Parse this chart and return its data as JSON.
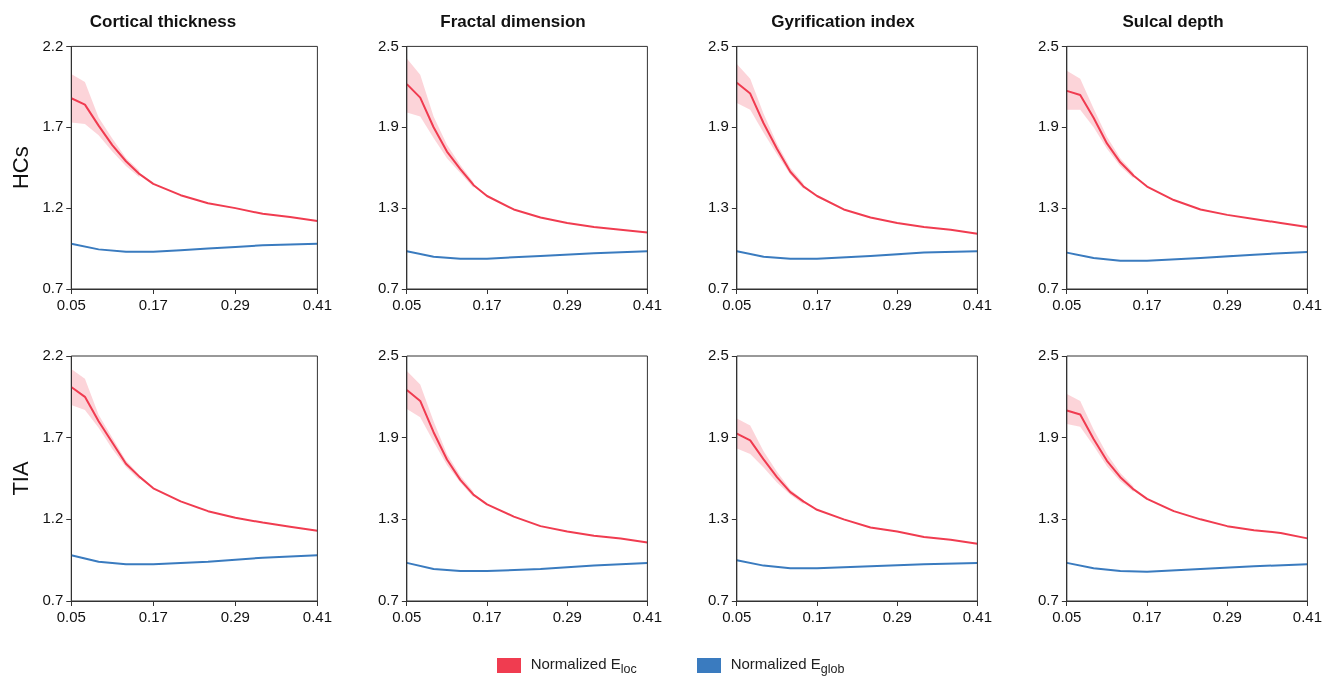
{
  "chart_data": [
    {
      "type": "line",
      "title": "Cortical thickness",
      "ylabel": "HCs",
      "legend": "bottom",
      "xlim": [
        0.05,
        0.41
      ],
      "xticks": [
        0.05,
        0.17,
        0.29,
        0.41
      ],
      "ylim": [
        0.7,
        2.2
      ],
      "yticks": [
        0.7,
        1.2,
        1.7,
        2.2
      ],
      "series": [
        {
          "name": "Normalized E$_{loc}$",
          "color": "#f03c50",
          "x": [
            0.05,
            0.07,
            0.09,
            0.11,
            0.13,
            0.15,
            0.17,
            0.21,
            0.25,
            0.29,
            0.33,
            0.37,
            0.41
          ],
          "values": [
            1.88,
            1.84,
            1.71,
            1.59,
            1.49,
            1.41,
            1.35,
            1.28,
            1.23,
            1.2,
            1.165,
            1.145,
            1.12
          ],
          "lower": [
            1.73,
            1.72,
            1.65,
            1.55,
            1.46,
            1.39,
            null,
            null,
            null,
            null,
            null,
            null,
            null
          ],
          "upper": [
            2.03,
            1.98,
            1.76,
            1.63,
            1.51,
            1.43,
            null,
            null,
            null,
            null,
            null,
            null,
            null
          ]
        },
        {
          "name": "Normalized E$_{glob}$",
          "color": "#3a7bbf",
          "x": [
            0.05,
            0.09,
            0.13,
            0.17,
            0.21,
            0.25,
            0.29,
            0.33,
            0.37,
            0.41
          ],
          "values": [
            0.98,
            0.945,
            0.93,
            0.93,
            0.94,
            0.95,
            0.96,
            0.97,
            0.975,
            0.98
          ]
        }
      ]
    },
    {
      "type": "line",
      "title": "Fractal dimension",
      "xlim": [
        0.05,
        0.41
      ],
      "xticks": [
        0.05,
        0.17,
        0.29,
        0.41
      ],
      "ylim": [
        0.7,
        2.5
      ],
      "yticks": [
        0.7,
        1.3,
        1.9,
        2.5
      ],
      "series": [
        {
          "color": "#f03c50",
          "x": [
            0.05,
            0.07,
            0.09,
            0.11,
            0.13,
            0.15,
            0.17,
            0.21,
            0.25,
            0.29,
            0.33,
            0.37,
            0.41
          ],
          "values": [
            2.22,
            2.12,
            1.9,
            1.72,
            1.59,
            1.47,
            1.39,
            1.29,
            1.23,
            1.19,
            1.16,
            1.14,
            1.12
          ],
          "lower": [
            2.01,
            1.98,
            1.82,
            1.67,
            1.56,
            1.45,
            null,
            null,
            null,
            null,
            null,
            null,
            null
          ],
          "upper": [
            2.41,
            2.29,
            1.98,
            1.77,
            1.62,
            1.49,
            null,
            null,
            null,
            null,
            null,
            null,
            null
          ]
        },
        {
          "color": "#3a7bbf",
          "x": [
            0.05,
            0.09,
            0.13,
            0.17,
            0.25,
            0.33,
            0.41
          ],
          "values": [
            0.98,
            0.94,
            0.925,
            0.925,
            0.945,
            0.965,
            0.98
          ]
        }
      ]
    },
    {
      "type": "line",
      "title": "Gyrification index",
      "xlim": [
        0.05,
        0.41
      ],
      "xticks": [
        0.05,
        0.17,
        0.29,
        0.41
      ],
      "ylim": [
        0.7,
        2.5
      ],
      "yticks": [
        0.7,
        1.3,
        1.9,
        2.5
      ],
      "series": [
        {
          "color": "#f03c50",
          "x": [
            0.05,
            0.07,
            0.09,
            0.11,
            0.13,
            0.15,
            0.17,
            0.21,
            0.25,
            0.29,
            0.33,
            0.37,
            0.41
          ],
          "values": [
            2.23,
            2.15,
            1.93,
            1.74,
            1.57,
            1.46,
            1.39,
            1.29,
            1.23,
            1.19,
            1.16,
            1.14,
            1.11
          ],
          "lower": [
            2.08,
            2.03,
            1.86,
            1.7,
            1.55,
            1.44,
            null,
            null,
            null,
            null,
            null,
            null,
            null
          ],
          "upper": [
            2.37,
            2.26,
            2.0,
            1.78,
            1.6,
            1.48,
            null,
            null,
            null,
            null,
            null,
            null,
            null
          ]
        },
        {
          "color": "#3a7bbf",
          "x": [
            0.05,
            0.09,
            0.13,
            0.17,
            0.25,
            0.33,
            0.41
          ],
          "values": [
            0.98,
            0.94,
            0.925,
            0.925,
            0.945,
            0.97,
            0.98
          ]
        }
      ]
    },
    {
      "type": "line",
      "title": "Sulcal depth",
      "xlim": [
        0.05,
        0.41
      ],
      "xticks": [
        0.05,
        0.17,
        0.29,
        0.41
      ],
      "ylim": [
        0.7,
        2.5
      ],
      "yticks": [
        0.7,
        1.3,
        1.9,
        2.5
      ],
      "series": [
        {
          "color": "#f03c50",
          "x": [
            0.05,
            0.07,
            0.09,
            0.11,
            0.13,
            0.15,
            0.17,
            0.21,
            0.25,
            0.29,
            0.33,
            0.37,
            0.41
          ],
          "values": [
            2.17,
            2.14,
            1.97,
            1.78,
            1.64,
            1.54,
            1.46,
            1.36,
            1.29,
            1.25,
            1.22,
            1.19,
            1.16
          ],
          "lower": [
            2.03,
            2.03,
            1.9,
            1.74,
            1.61,
            1.52,
            null,
            null,
            null,
            null,
            null,
            null,
            null
          ],
          "upper": [
            2.32,
            2.26,
            2.04,
            1.83,
            1.67,
            1.56,
            null,
            null,
            null,
            null,
            null,
            null,
            null
          ]
        },
        {
          "color": "#3a7bbf",
          "x": [
            0.05,
            0.09,
            0.13,
            0.17,
            0.25,
            0.33,
            0.41
          ],
          "values": [
            0.97,
            0.93,
            0.91,
            0.91,
            0.93,
            0.955,
            0.975
          ]
        }
      ]
    },
    {
      "type": "line",
      "ylabel": "TIA",
      "xlim": [
        0.05,
        0.41
      ],
      "xticks": [
        0.05,
        0.17,
        0.29,
        0.41
      ],
      "ylim": [
        0.7,
        2.2
      ],
      "yticks": [
        0.7,
        1.2,
        1.7,
        2.2
      ],
      "series": [
        {
          "color": "#f03c50",
          "x": [
            0.05,
            0.07,
            0.09,
            0.11,
            0.13,
            0.15,
            0.17,
            0.21,
            0.25,
            0.29,
            0.33,
            0.37,
            0.41
          ],
          "values": [
            2.01,
            1.95,
            1.8,
            1.67,
            1.54,
            1.46,
            1.39,
            1.31,
            1.25,
            1.21,
            1.18,
            1.155,
            1.13
          ],
          "lower": [
            1.9,
            1.87,
            1.76,
            1.63,
            1.52,
            1.44,
            null,
            null,
            null,
            null,
            null,
            null,
            null
          ],
          "upper": [
            2.12,
            2.06,
            1.84,
            1.7,
            1.56,
            1.47,
            null,
            null,
            null,
            null,
            null,
            null,
            null
          ]
        },
        {
          "color": "#3a7bbf",
          "x": [
            0.05,
            0.09,
            0.13,
            0.17,
            0.25,
            0.33,
            0.41
          ],
          "values": [
            0.98,
            0.94,
            0.925,
            0.925,
            0.94,
            0.965,
            0.98
          ]
        }
      ]
    },
    {
      "type": "line",
      "xlim": [
        0.05,
        0.41
      ],
      "xticks": [
        0.05,
        0.17,
        0.29,
        0.41
      ],
      "ylim": [
        0.7,
        2.5
      ],
      "yticks": [
        0.7,
        1.3,
        1.9,
        2.5
      ],
      "series": [
        {
          "color": "#f03c50",
          "x": [
            0.05,
            0.07,
            0.09,
            0.11,
            0.13,
            0.15,
            0.17,
            0.21,
            0.25,
            0.29,
            0.33,
            0.37,
            0.41
          ],
          "values": [
            2.25,
            2.17,
            1.94,
            1.74,
            1.59,
            1.48,
            1.41,
            1.32,
            1.25,
            1.21,
            1.18,
            1.16,
            1.13
          ],
          "lower": [
            2.11,
            2.05,
            1.87,
            1.7,
            1.57,
            1.46,
            null,
            null,
            null,
            null,
            null,
            null,
            null
          ],
          "upper": [
            2.39,
            2.29,
            2.02,
            1.78,
            1.62,
            1.5,
            null,
            null,
            null,
            null,
            null,
            null,
            null
          ]
        },
        {
          "color": "#3a7bbf",
          "x": [
            0.05,
            0.09,
            0.13,
            0.17,
            0.25,
            0.33,
            0.41
          ],
          "values": [
            0.98,
            0.935,
            0.92,
            0.92,
            0.935,
            0.96,
            0.98
          ]
        }
      ]
    },
    {
      "type": "line",
      "xlim": [
        0.05,
        0.41
      ],
      "xticks": [
        0.05,
        0.17,
        0.29,
        0.41
      ],
      "ylim": [
        0.7,
        2.5
      ],
      "yticks": [
        0.7,
        1.3,
        1.9,
        2.5
      ],
      "series": [
        {
          "color": "#f03c50",
          "x": [
            0.05,
            0.07,
            0.09,
            0.11,
            0.13,
            0.15,
            0.17,
            0.21,
            0.25,
            0.29,
            0.33,
            0.37,
            0.41
          ],
          "values": [
            1.93,
            1.88,
            1.74,
            1.61,
            1.5,
            1.43,
            1.37,
            1.3,
            1.24,
            1.21,
            1.17,
            1.15,
            1.12
          ],
          "lower": [
            1.82,
            1.78,
            1.68,
            1.57,
            1.48,
            1.41,
            null,
            null,
            null,
            null,
            null,
            null,
            null
          ],
          "upper": [
            2.04,
            1.99,
            1.8,
            1.65,
            1.52,
            1.44,
            null,
            null,
            null,
            null,
            null,
            null,
            null
          ]
        },
        {
          "color": "#3a7bbf",
          "x": [
            0.05,
            0.09,
            0.13,
            0.17,
            0.25,
            0.33,
            0.41
          ],
          "values": [
            1.0,
            0.96,
            0.94,
            0.94,
            0.955,
            0.97,
            0.98
          ]
        }
      ]
    },
    {
      "type": "line",
      "xlim": [
        0.05,
        0.41
      ],
      "xticks": [
        0.05,
        0.17,
        0.29,
        0.41
      ],
      "ylim": [
        0.7,
        2.5
      ],
      "yticks": [
        0.7,
        1.3,
        1.9,
        2.5
      ],
      "series": [
        {
          "color": "#f03c50",
          "x": [
            0.05,
            0.07,
            0.09,
            0.11,
            0.13,
            0.15,
            0.17,
            0.21,
            0.25,
            0.29,
            0.33,
            0.37,
            0.41
          ],
          "values": [
            2.1,
            2.07,
            1.89,
            1.73,
            1.61,
            1.52,
            1.45,
            1.36,
            1.3,
            1.25,
            1.22,
            1.2,
            1.16
          ],
          "lower": [
            2.0,
            1.98,
            1.84,
            1.69,
            1.58,
            1.5,
            null,
            null,
            null,
            null,
            null,
            null,
            null
          ],
          "upper": [
            2.22,
            2.17,
            1.96,
            1.78,
            1.64,
            1.54,
            null,
            null,
            null,
            null,
            null,
            null,
            null
          ]
        },
        {
          "color": "#3a7bbf",
          "x": [
            0.05,
            0.09,
            0.13,
            0.17,
            0.25,
            0.33,
            0.41
          ],
          "values": [
            0.98,
            0.94,
            0.92,
            0.915,
            0.935,
            0.955,
            0.97
          ]
        }
      ]
    }
  ]
}
